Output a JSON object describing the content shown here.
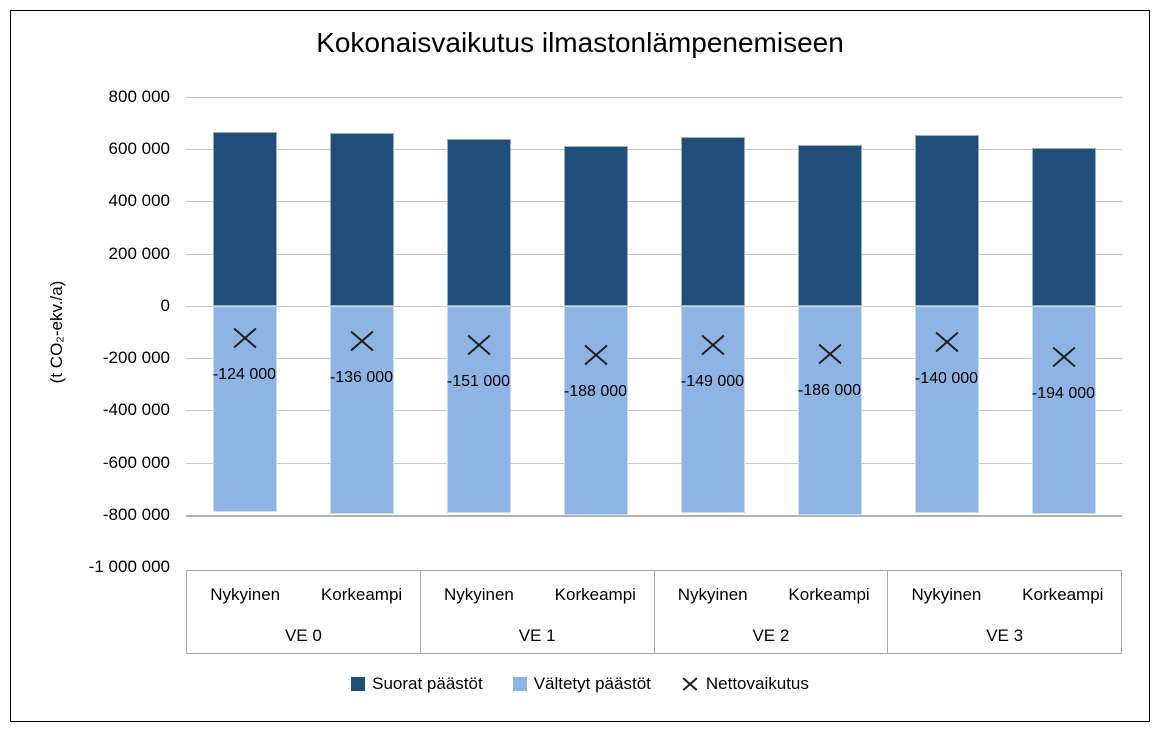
{
  "chart_data": {
    "type": "bar",
    "stacked": true,
    "title": "Kokonaisvaikutus ilmastonlämpenemiseen",
    "ylabel": "(t CO₂-ekv./a)",
    "ylim": [
      -1000000,
      800000
    ],
    "ytick_step": 200000,
    "grid": true,
    "legend_position": "bottom",
    "yticks": [
      {
        "value": 800000,
        "label": "800 000"
      },
      {
        "value": 600000,
        "label": "600 000"
      },
      {
        "value": 400000,
        "label": "400 000"
      },
      {
        "value": 200000,
        "label": "200 000"
      },
      {
        "value": 0,
        "label": "0"
      },
      {
        "value": -200000,
        "label": "-200 000"
      },
      {
        "value": -400000,
        "label": "-400 000"
      },
      {
        "value": -600000,
        "label": "-600 000"
      },
      {
        "value": -800000,
        "label": "-800 000"
      },
      {
        "value": -1000000,
        "label": "-1 000 000"
      }
    ],
    "series": [
      {
        "name": "Suorat päästöt",
        "type": "bar",
        "color": "#1F4E79"
      },
      {
        "name": "Vältetyt päästöt",
        "type": "bar",
        "color": "#8DB4E2"
      },
      {
        "name": "Nettovaikutus",
        "type": "marker-x",
        "color": "#1F1F1F"
      }
    ],
    "groups": [
      {
        "label": "VE 0",
        "bars": [
          {
            "label": "Nykyinen",
            "suorat": 665000,
            "valtetyt": -789000,
            "netto": -124000,
            "netto_label": "-124 000"
          },
          {
            "label": "Korkeampi",
            "suorat": 662000,
            "valtetyt": -798000,
            "netto": -136000,
            "netto_label": "-136 000"
          }
        ]
      },
      {
        "label": "VE 1",
        "bars": [
          {
            "label": "Nykyinen",
            "suorat": 641000,
            "valtetyt": -792000,
            "netto": -151000,
            "netto_label": "-151 000"
          },
          {
            "label": "Korkeampi",
            "suorat": 612000,
            "valtetyt": -800000,
            "netto": -188000,
            "netto_label": "-188 000"
          }
        ]
      },
      {
        "label": "VE 2",
        "bars": [
          {
            "label": "Nykyinen",
            "suorat": 645000,
            "valtetyt": -794000,
            "netto": -149000,
            "netto_label": "-149 000"
          },
          {
            "label": "Korkeampi",
            "suorat": 615000,
            "valtetyt": -801000,
            "netto": -186000,
            "netto_label": "-186 000"
          }
        ]
      },
      {
        "label": "VE 3",
        "bars": [
          {
            "label": "Nykyinen",
            "suorat": 653000,
            "valtetyt": -793000,
            "netto": -140000,
            "netto_label": "-140 000"
          },
          {
            "label": "Korkeampi",
            "suorat": 603000,
            "valtetyt": -797000,
            "netto": -194000,
            "netto_label": "-194 000"
          }
        ]
      }
    ]
  }
}
